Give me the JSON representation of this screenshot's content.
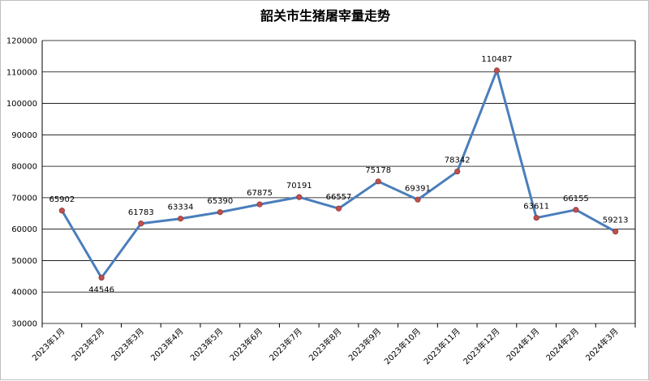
{
  "chart_data": {
    "type": "line",
    "title": "韶关市生猪屠宰量走势",
    "categories": [
      "2023年1月",
      "2023年2月",
      "2023年3月",
      "2023年4月",
      "2023年5月",
      "2023年6月",
      "2023年7月",
      "2023年8月",
      "2023年9月",
      "2023年10月",
      "2023年11月",
      "2023年12月",
      "2024年1月",
      "2024年2月",
      "2024年3月"
    ],
    "values": [
      65902,
      44546,
      61783,
      63334,
      65390,
      67875,
      70191,
      66557,
      75178,
      69391,
      78342,
      110487,
      63611,
      66155,
      59213
    ],
    "ylim": [
      30000,
      120000
    ],
    "yticks": [
      30000,
      40000,
      50000,
      60000,
      70000,
      80000,
      90000,
      100000,
      110000,
      120000
    ],
    "grid": true,
    "legend": "none",
    "colors": {
      "line": "#4a7ebb",
      "marker": "#c0504d"
    }
  }
}
